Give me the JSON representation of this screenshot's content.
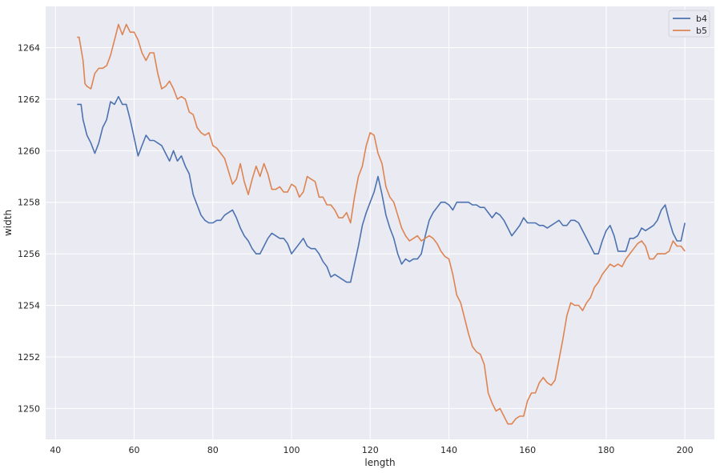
{
  "chart_data": {
    "type": "line",
    "title": "",
    "xlabel": "length",
    "ylabel": "width",
    "xlim": [
      37.5,
      207.5
    ],
    "ylim": [
      1248.8,
      1265.6
    ],
    "xticks": [
      40,
      60,
      80,
      100,
      120,
      140,
      160,
      180,
      200
    ],
    "yticks": [
      1250,
      1252,
      1254,
      1256,
      1258,
      1260,
      1262,
      1264
    ],
    "grid": true,
    "legend_position": "top-right",
    "background_color": "#eaeaf2",
    "series": [
      {
        "name": "b4",
        "color": "#4c72b0",
        "points": [
          [
            45.5,
            1261.8
          ],
          [
            46.5,
            1261.8
          ],
          [
            47,
            1261.2
          ],
          [
            48,
            1260.6
          ],
          [
            49,
            1260.3
          ],
          [
            50,
            1259.9
          ],
          [
            51,
            1260.3
          ],
          [
            52,
            1260.9
          ],
          [
            53,
            1261.2
          ],
          [
            54,
            1261.9
          ],
          [
            55,
            1261.8
          ],
          [
            56,
            1262.1
          ],
          [
            57,
            1261.8
          ],
          [
            58,
            1261.8
          ],
          [
            59,
            1261.2
          ],
          [
            60,
            1260.5
          ],
          [
            61,
            1259.8
          ],
          [
            62,
            1260.2
          ],
          [
            63,
            1260.6
          ],
          [
            64,
            1260.4
          ],
          [
            65,
            1260.4
          ],
          [
            66,
            1260.3
          ],
          [
            67,
            1260.2
          ],
          [
            68,
            1259.9
          ],
          [
            69,
            1259.6
          ],
          [
            70,
            1260.0
          ],
          [
            71,
            1259.6
          ],
          [
            72,
            1259.8
          ],
          [
            73,
            1259.4
          ],
          [
            74,
            1259.1
          ],
          [
            75,
            1258.3
          ],
          [
            76,
            1257.9
          ],
          [
            77,
            1257.5
          ],
          [
            78,
            1257.3
          ],
          [
            79,
            1257.2
          ],
          [
            80,
            1257.2
          ],
          [
            81,
            1257.3
          ],
          [
            82,
            1257.3
          ],
          [
            83,
            1257.5
          ],
          [
            84,
            1257.6
          ],
          [
            85,
            1257.7
          ],
          [
            86,
            1257.4
          ],
          [
            87,
            1257.0
          ],
          [
            88,
            1256.7
          ],
          [
            89,
            1256.5
          ],
          [
            90,
            1256.2
          ],
          [
            91,
            1256.0
          ],
          [
            92,
            1256.0
          ],
          [
            93,
            1256.3
          ],
          [
            94,
            1256.6
          ],
          [
            95,
            1256.8
          ],
          [
            96,
            1256.7
          ],
          [
            97,
            1256.6
          ],
          [
            98,
            1256.6
          ],
          [
            99,
            1256.4
          ],
          [
            100,
            1256.0
          ],
          [
            101,
            1256.2
          ],
          [
            102,
            1256.4
          ],
          [
            103,
            1256.6
          ],
          [
            104,
            1256.3
          ],
          [
            105,
            1256.2
          ],
          [
            106,
            1256.2
          ],
          [
            107,
            1256.0
          ],
          [
            108,
            1255.7
          ],
          [
            109,
            1255.5
          ],
          [
            110,
            1255.1
          ],
          [
            111,
            1255.2
          ],
          [
            112,
            1255.1
          ],
          [
            113,
            1255.0
          ],
          [
            114,
            1254.9
          ],
          [
            115,
            1254.9
          ],
          [
            116,
            1255.6
          ],
          [
            117,
            1256.3
          ],
          [
            118,
            1257.1
          ],
          [
            119,
            1257.6
          ],
          [
            120,
            1258.0
          ],
          [
            121,
            1258.4
          ],
          [
            122,
            1259.0
          ],
          [
            123,
            1258.3
          ],
          [
            124,
            1257.5
          ],
          [
            125,
            1257.0
          ],
          [
            126,
            1256.6
          ],
          [
            127,
            1256.0
          ],
          [
            128,
            1255.6
          ],
          [
            129,
            1255.8
          ],
          [
            130,
            1255.7
          ],
          [
            131,
            1255.8
          ],
          [
            132,
            1255.8
          ],
          [
            133,
            1256.0
          ],
          [
            134,
            1256.7
          ],
          [
            135,
            1257.3
          ],
          [
            136,
            1257.6
          ],
          [
            137,
            1257.8
          ],
          [
            138,
            1258.0
          ],
          [
            139,
            1258.0
          ],
          [
            140,
            1257.9
          ],
          [
            141,
            1257.7
          ],
          [
            142,
            1258.0
          ],
          [
            143,
            1258.0
          ],
          [
            144,
            1258.0
          ],
          [
            145,
            1258.0
          ],
          [
            146,
            1257.9
          ],
          [
            147,
            1257.9
          ],
          [
            148,
            1257.8
          ],
          [
            149,
            1257.8
          ],
          [
            150,
            1257.6
          ],
          [
            151,
            1257.4
          ],
          [
            152,
            1257.6
          ],
          [
            153,
            1257.5
          ],
          [
            154,
            1257.3
          ],
          [
            155,
            1257.0
          ],
          [
            156,
            1256.7
          ],
          [
            157,
            1256.9
          ],
          [
            158,
            1257.1
          ],
          [
            159,
            1257.4
          ],
          [
            160,
            1257.2
          ],
          [
            161,
            1257.2
          ],
          [
            162,
            1257.2
          ],
          [
            163,
            1257.1
          ],
          [
            164,
            1257.1
          ],
          [
            165,
            1257.0
          ],
          [
            166,
            1257.1
          ],
          [
            167,
            1257.2
          ],
          [
            168,
            1257.3
          ],
          [
            169,
            1257.1
          ],
          [
            170,
            1257.1
          ],
          [
            171,
            1257.3
          ],
          [
            172,
            1257.3
          ],
          [
            173,
            1257.2
          ],
          [
            174,
            1256.9
          ],
          [
            175,
            1256.6
          ],
          [
            176,
            1256.3
          ],
          [
            177,
            1256.0
          ],
          [
            178,
            1256.0
          ],
          [
            179,
            1256.5
          ],
          [
            180,
            1256.9
          ],
          [
            181,
            1257.1
          ],
          [
            182,
            1256.7
          ],
          [
            183,
            1256.1
          ],
          [
            184,
            1256.1
          ],
          [
            185,
            1256.1
          ],
          [
            186,
            1256.6
          ],
          [
            187,
            1256.6
          ],
          [
            188,
            1256.7
          ],
          [
            189,
            1257.0
          ],
          [
            190,
            1256.9
          ],
          [
            191,
            1257.0
          ],
          [
            192,
            1257.1
          ],
          [
            193,
            1257.3
          ],
          [
            194,
            1257.7
          ],
          [
            195,
            1257.9
          ],
          [
            196,
            1257.3
          ],
          [
            197,
            1256.8
          ],
          [
            198,
            1256.5
          ],
          [
            199,
            1256.5
          ],
          [
            200,
            1257.2
          ]
        ]
      },
      {
        "name": "b5",
        "color": "#dd8452",
        "points": [
          [
            45.5,
            1264.4
          ],
          [
            46,
            1264.4
          ],
          [
            47,
            1263.5
          ],
          [
            47.5,
            1262.6
          ],
          [
            48,
            1262.5
          ],
          [
            49,
            1262.4
          ],
          [
            50,
            1263.0
          ],
          [
            51,
            1263.2
          ],
          [
            52,
            1263.2
          ],
          [
            53,
            1263.3
          ],
          [
            54,
            1263.7
          ],
          [
            55,
            1264.3
          ],
          [
            56,
            1264.9
          ],
          [
            57,
            1264.5
          ],
          [
            58,
            1264.9
          ],
          [
            59,
            1264.6
          ],
          [
            60,
            1264.6
          ],
          [
            61,
            1264.3
          ],
          [
            62,
            1263.8
          ],
          [
            63,
            1263.5
          ],
          [
            64,
            1263.8
          ],
          [
            65,
            1263.8
          ],
          [
            66,
            1263.0
          ],
          [
            67,
            1262.4
          ],
          [
            68,
            1262.5
          ],
          [
            69,
            1262.7
          ],
          [
            70,
            1262.4
          ],
          [
            71,
            1262.0
          ],
          [
            72,
            1262.1
          ],
          [
            73,
            1262.0
          ],
          [
            74,
            1261.5
          ],
          [
            75,
            1261.4
          ],
          [
            76,
            1260.9
          ],
          [
            77,
            1260.7
          ],
          [
            78,
            1260.6
          ],
          [
            79,
            1260.7
          ],
          [
            80,
            1260.2
          ],
          [
            81,
            1260.1
          ],
          [
            82,
            1259.9
          ],
          [
            83,
            1259.7
          ],
          [
            84,
            1259.2
          ],
          [
            85,
            1258.7
          ],
          [
            86,
            1258.9
          ],
          [
            87,
            1259.5
          ],
          [
            88,
            1258.8
          ],
          [
            89,
            1258.3
          ],
          [
            90,
            1258.9
          ],
          [
            91,
            1259.4
          ],
          [
            92,
            1259.0
          ],
          [
            93,
            1259.5
          ],
          [
            94,
            1259.1
          ],
          [
            95,
            1258.5
          ],
          [
            96,
            1258.5
          ],
          [
            97,
            1258.6
          ],
          [
            98,
            1258.4
          ],
          [
            99,
            1258.4
          ],
          [
            100,
            1258.7
          ],
          [
            101,
            1258.6
          ],
          [
            102,
            1258.2
          ],
          [
            103,
            1258.4
          ],
          [
            104,
            1259.0
          ],
          [
            105,
            1258.9
          ],
          [
            106,
            1258.8
          ],
          [
            107,
            1258.2
          ],
          [
            108,
            1258.2
          ],
          [
            109,
            1257.9
          ],
          [
            110,
            1257.9
          ],
          [
            111,
            1257.7
          ],
          [
            112,
            1257.4
          ],
          [
            113,
            1257.4
          ],
          [
            114,
            1257.6
          ],
          [
            115,
            1257.2
          ],
          [
            116,
            1258.2
          ],
          [
            117,
            1259.0
          ],
          [
            118,
            1259.4
          ],
          [
            119,
            1260.2
          ],
          [
            120,
            1260.7
          ],
          [
            121,
            1260.6
          ],
          [
            122,
            1259.9
          ],
          [
            123,
            1259.5
          ],
          [
            124,
            1258.6
          ],
          [
            125,
            1258.2
          ],
          [
            126,
            1258.0
          ],
          [
            127,
            1257.5
          ],
          [
            128,
            1257.0
          ],
          [
            129,
            1256.7
          ],
          [
            130,
            1256.5
          ],
          [
            131,
            1256.6
          ],
          [
            132,
            1256.7
          ],
          [
            133,
            1256.5
          ],
          [
            134,
            1256.6
          ],
          [
            135,
            1256.7
          ],
          [
            136,
            1256.6
          ],
          [
            137,
            1256.4
          ],
          [
            138,
            1256.1
          ],
          [
            139,
            1255.9
          ],
          [
            140,
            1255.8
          ],
          [
            141,
            1255.2
          ],
          [
            142,
            1254.4
          ],
          [
            143,
            1254.1
          ],
          [
            144,
            1253.5
          ],
          [
            145,
            1252.9
          ],
          [
            146,
            1252.4
          ],
          [
            147,
            1252.2
          ],
          [
            148,
            1252.1
          ],
          [
            149,
            1251.7
          ],
          [
            150,
            1250.6
          ],
          [
            151,
            1250.2
          ],
          [
            152,
            1249.9
          ],
          [
            153,
            1250.0
          ],
          [
            154,
            1249.7
          ],
          [
            155,
            1249.4
          ],
          [
            156,
            1249.4
          ],
          [
            157,
            1249.6
          ],
          [
            158,
            1249.7
          ],
          [
            159,
            1249.7
          ],
          [
            160,
            1250.3
          ],
          [
            161,
            1250.6
          ],
          [
            162,
            1250.6
          ],
          [
            163,
            1251.0
          ],
          [
            164,
            1251.2
          ],
          [
            165,
            1251.0
          ],
          [
            166,
            1250.9
          ],
          [
            167,
            1251.1
          ],
          [
            168,
            1251.9
          ],
          [
            169,
            1252.7
          ],
          [
            170,
            1253.6
          ],
          [
            171,
            1254.1
          ],
          [
            172,
            1254.0
          ],
          [
            173,
            1254.0
          ],
          [
            174,
            1253.8
          ],
          [
            175,
            1254.1
          ],
          [
            176,
            1254.3
          ],
          [
            177,
            1254.7
          ],
          [
            178,
            1254.9
          ],
          [
            179,
            1255.2
          ],
          [
            180,
            1255.4
          ],
          [
            181,
            1255.6
          ],
          [
            182,
            1255.5
          ],
          [
            183,
            1255.6
          ],
          [
            184,
            1255.5
          ],
          [
            185,
            1255.8
          ],
          [
            186,
            1256.0
          ],
          [
            187,
            1256.2
          ],
          [
            188,
            1256.4
          ],
          [
            189,
            1256.5
          ],
          [
            190,
            1256.3
          ],
          [
            191,
            1255.8
          ],
          [
            192,
            1255.8
          ],
          [
            193,
            1256.0
          ],
          [
            194,
            1256.0
          ],
          [
            195,
            1256.0
          ],
          [
            196,
            1256.1
          ],
          [
            197,
            1256.5
          ],
          [
            198,
            1256.3
          ],
          [
            199,
            1256.3
          ],
          [
            200,
            1256.1
          ]
        ]
      }
    ]
  }
}
